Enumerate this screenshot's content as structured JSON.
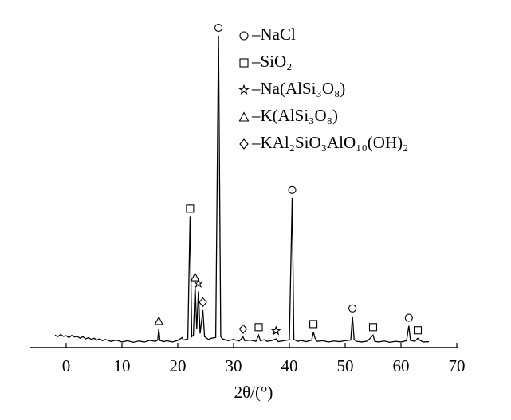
{
  "chart_data": {
    "type": "line",
    "x_label": "2θ/(°)",
    "xlim": [
      -10,
      70
    ],
    "xticks": [
      0,
      10,
      20,
      30,
      40,
      50,
      60,
      70
    ],
    "ylim": [
      0,
      100
    ],
    "series": [
      {
        "color": "#000000",
        "x": [
          -2,
          -1.5,
          -1,
          -0.5,
          0,
          0.5,
          1,
          1.5,
          2,
          2.5,
          3,
          3.5,
          4,
          4.5,
          5,
          5.5,
          6,
          6.5,
          7,
          8,
          9,
          10,
          11,
          12,
          13,
          14,
          15,
          16,
          16.4,
          16.6,
          16.8,
          17.5,
          18,
          19,
          20,
          20.8,
          21,
          21.8,
          22.2,
          22.5,
          22.8,
          23.1,
          23.4,
          23.7,
          24,
          24.5,
          24.8,
          25.5,
          26,
          26.8,
          27.3,
          27.7,
          28,
          29,
          30,
          31,
          31.7,
          32,
          33,
          34,
          34.5,
          34.8,
          35.5,
          36,
          37,
          37.6,
          38,
          39,
          40,
          40.5,
          40.8,
          41.5,
          42,
          43,
          44,
          44.3,
          44.6,
          45,
          46,
          47,
          48,
          49,
          50,
          51,
          51.3,
          51.6,
          52,
          53,
          54,
          55,
          55.3,
          56,
          57,
          58,
          59,
          60,
          61,
          61.4,
          61.7,
          62.5,
          63,
          63.5,
          64,
          65
        ],
        "values": [
          4,
          3.5,
          4.2,
          3.6,
          3.8,
          3.2,
          3.9,
          3.4,
          3.6,
          3.0,
          3.5,
          2.8,
          3.2,
          2.6,
          3.0,
          2.4,
          2.8,
          2.2,
          2.6,
          2.0,
          2.4,
          1.8,
          2.2,
          1.7,
          2.1,
          1.8,
          2.3,
          2.0,
          2.4,
          6,
          2.3,
          1.9,
          2.2,
          1.8,
          2.3,
          3.2,
          2.4,
          2.8,
          42,
          3.5,
          4,
          20,
          6,
          18,
          4.5,
          12,
          3.5,
          2.6,
          3,
          3.2,
          100,
          3.5,
          2.8,
          2.2,
          2.6,
          2.1,
          3.4,
          2.2,
          2.4,
          2.0,
          4,
          2.2,
          2.5,
          2.0,
          2.3,
          2.8,
          1.9,
          2.2,
          2.5,
          48,
          2.6,
          2.0,
          2.3,
          1.9,
          2.4,
          5,
          3,
          2.0,
          2.2,
          1.8,
          2.1,
          1.9,
          2.2,
          2.4,
          10,
          2.6,
          2.0,
          1.8,
          2.1,
          4,
          2,
          1.8,
          2.1,
          1.7,
          2.0,
          1.8,
          2.2,
          7,
          2.3,
          2.0,
          3,
          2.2,
          1.8,
          1.9
        ]
      }
    ],
    "phases": [
      {
        "symbol": "circle",
        "label": "–NaCl",
        "peaks": [
          27.3,
          40.5,
          51.3,
          61.4
        ]
      },
      {
        "symbol": "square",
        "label": "–SiO₂",
        "peaks": [
          22.2,
          34.5,
          44.3,
          55,
          63
        ]
      },
      {
        "symbol": "star",
        "label": "–Na(AlSi₃O₈)",
        "peaks": [
          23.7,
          37.6
        ]
      },
      {
        "symbol": "triangle",
        "label": "–K(AlSi₃O₈)",
        "peaks": [
          16.6,
          23.1
        ]
      },
      {
        "symbol": "diamond",
        "label": "–KAl₂SiO₃AlO₁₀(OH)₂",
        "peaks": [
          24.5,
          31.7
        ]
      }
    ]
  }
}
